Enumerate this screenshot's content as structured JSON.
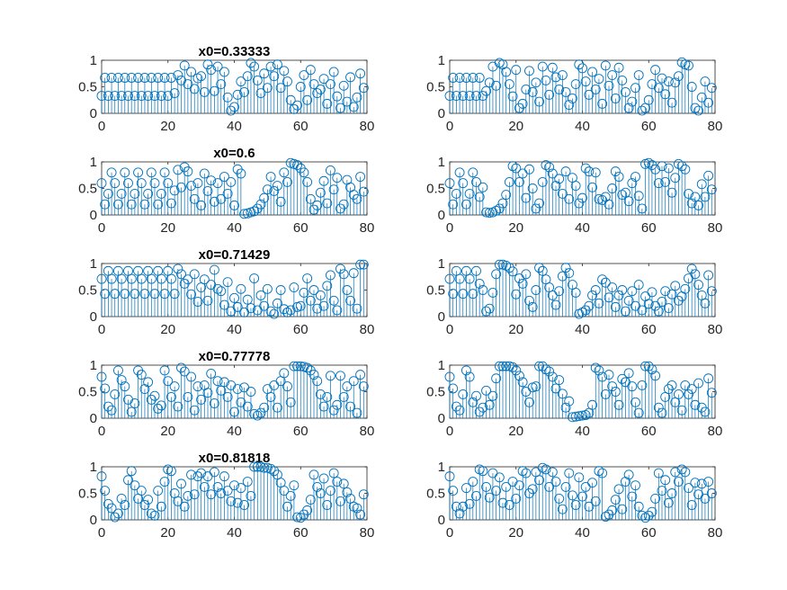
{
  "chart_data": [
    {
      "type": "stem",
      "title": "x0=0.33333",
      "xlim": [
        0,
        80
      ],
      "ylim": [
        0,
        1
      ],
      "xticks": [
        0,
        20,
        40,
        60,
        80
      ],
      "yticks": [
        0,
        0.5,
        1
      ],
      "x_start": 0,
      "values": [
        0.33,
        0.67,
        0.33,
        0.67,
        0.33,
        0.67,
        0.33,
        0.67,
        0.33,
        0.67,
        0.33,
        0.67,
        0.33,
        0.67,
        0.33,
        0.67,
        0.33,
        0.67,
        0.33,
        0.67,
        0.33,
        0.67,
        0.38,
        0.72,
        0.62,
        0.9,
        0.55,
        0.78,
        0.46,
        0.66,
        0.7,
        0.4,
        0.92,
        0.82,
        0.42,
        0.88,
        0.55,
        0.78,
        0.3,
        0.05,
        0.12,
        0.35,
        0.6,
        0.4,
        0.7,
        0.95,
        0.88,
        0.62,
        0.38,
        0.75,
        0.48,
        0.88,
        0.7,
        0.92,
        0.48,
        0.8,
        0.6,
        0.25,
        0.08,
        0.15,
        0.5,
        0.72,
        0.25,
        0.82,
        0.55,
        0.38,
        0.45,
        0.65,
        0.18,
        0.55,
        0.78,
        0.32,
        0.1,
        0.52,
        0.22,
        0.68,
        0.12,
        0.3,
        0.75,
        0.48
      ]
    },
    {
      "type": "stem",
      "title": "",
      "xlim": [
        0,
        80
      ],
      "ylim": [
        0,
        1
      ],
      "xticks": [
        0,
        20,
        40,
        60,
        80
      ],
      "yticks": [
        0,
        0.5,
        1
      ],
      "x_start": 0,
      "values": [
        0.33,
        0.67,
        0.33,
        0.67,
        0.33,
        0.67,
        0.33,
        0.67,
        0.33,
        0.67,
        0.33,
        0.42,
        0.58,
        0.88,
        0.52,
        0.95,
        0.92,
        0.78,
        0.55,
        0.32,
        0.82,
        0.1,
        0.18,
        0.45,
        0.8,
        0.4,
        0.58,
        0.22,
        0.88,
        0.62,
        0.35,
        0.86,
        0.68,
        0.45,
        0.72,
        0.4,
        0.16,
        0.28,
        0.55,
        0.92,
        0.85,
        0.6,
        0.35,
        0.78,
        0.45,
        0.65,
        0.18,
        0.9,
        0.52,
        0.72,
        0.28,
        0.86,
        0.62,
        0.4,
        0.1,
        0.22,
        0.48,
        0.72,
        0.05,
        0.1,
        0.25,
        0.55,
        0.82,
        0.48,
        0.66,
        0.36,
        0.6,
        0.2,
        0.58,
        0.7,
        0.96,
        0.92,
        0.9,
        0.5,
        0.1,
        0.05,
        0.3,
        0.6,
        0.2,
        0.48
      ]
    },
    {
      "type": "stem",
      "title": "x0=0.6",
      "xlim": [
        0,
        80
      ],
      "ylim": [
        0,
        1
      ],
      "xticks": [
        0,
        20,
        40,
        60,
        80
      ],
      "yticks": [
        0,
        0.5,
        1
      ],
      "x_start": 0,
      "values": [
        0.6,
        0.2,
        0.4,
        0.8,
        0.6,
        0.2,
        0.4,
        0.8,
        0.6,
        0.2,
        0.4,
        0.8,
        0.6,
        0.2,
        0.4,
        0.8,
        0.6,
        0.2,
        0.4,
        0.8,
        0.6,
        0.22,
        0.46,
        0.85,
        0.52,
        0.9,
        0.82,
        0.55,
        0.3,
        0.6,
        0.18,
        0.78,
        0.45,
        0.65,
        0.25,
        0.6,
        0.3,
        0.72,
        0.4,
        0.62,
        0.18,
        0.86,
        0.78,
        0.02,
        0.03,
        0.05,
        0.07,
        0.12,
        0.2,
        0.32,
        0.48,
        0.72,
        0.45,
        0.55,
        0.25,
        0.8,
        0.62,
        0.98,
        0.96,
        0.94,
        0.88,
        0.8,
        0.62,
        0.3,
        0.1,
        0.18,
        0.42,
        0.64,
        0.22,
        0.84,
        0.48,
        0.7,
        0.12,
        0.2,
        0.66,
        0.52,
        0.38,
        0.3,
        0.72,
        0.44
      ]
    },
    {
      "type": "stem",
      "title": "",
      "xlim": [
        0,
        80
      ],
      "ylim": [
        0,
        1
      ],
      "xticks": [
        0,
        20,
        40,
        60,
        80
      ],
      "yticks": [
        0,
        0.5,
        1
      ],
      "x_start": 0,
      "values": [
        0.6,
        0.2,
        0.4,
        0.8,
        0.6,
        0.2,
        0.4,
        0.8,
        0.62,
        0.34,
        0.52,
        0.05,
        0.04,
        0.05,
        0.08,
        0.12,
        0.22,
        0.38,
        0.62,
        0.92,
        0.88,
        0.62,
        0.78,
        0.32,
        0.86,
        0.5,
        0.12,
        0.22,
        0.62,
        0.94,
        0.9,
        0.78,
        0.55,
        0.68,
        0.4,
        0.82,
        0.3,
        0.7,
        0.55,
        0.22,
        0.32,
        0.88,
        0.82,
        0.52,
        0.8,
        0.3,
        0.28,
        0.34,
        0.2,
        0.5,
        0.82,
        0.72,
        0.38,
        0.42,
        0.26,
        0.6,
        0.72,
        0.36,
        0.12,
        0.96,
        0.98,
        0.94,
        0.86,
        0.6,
        0.92,
        0.62,
        0.88,
        0.42,
        0.7,
        0.96,
        0.92,
        0.86,
        0.4,
        0.22,
        0.34,
        0.18,
        0.58,
        0.34,
        0.74,
        0.48
      ]
    },
    {
      "type": "stem",
      "title": "x0=0.71429",
      "xlim": [
        0,
        80
      ],
      "ylim": [
        0,
        1
      ],
      "xticks": [
        0,
        20,
        40,
        60,
        80
      ],
      "yticks": [
        0,
        0.5,
        1
      ],
      "x_start": 0,
      "values": [
        0.71,
        0.43,
        0.86,
        0.71,
        0.43,
        0.86,
        0.71,
        0.43,
        0.86,
        0.71,
        0.43,
        0.86,
        0.71,
        0.43,
        0.86,
        0.71,
        0.43,
        0.86,
        0.71,
        0.43,
        0.86,
        0.71,
        0.43,
        0.9,
        0.8,
        0.62,
        0.7,
        0.42,
        0.8,
        0.28,
        0.55,
        0.7,
        0.3,
        0.6,
        0.88,
        0.52,
        0.48,
        0.22,
        0.65,
        0.1,
        0.35,
        0.18,
        0.52,
        0.08,
        0.32,
        0.16,
        0.72,
        0.12,
        0.4,
        0.2,
        0.52,
        0.1,
        0.05,
        0.25,
        0.5,
        0.14,
        0.08,
        0.12,
        0.55,
        0.18,
        0.2,
        0.45,
        0.72,
        0.3,
        0.5,
        0.15,
        0.4,
        0.2,
        0.58,
        0.78,
        0.3,
        0.12,
        0.9,
        0.8,
        0.5,
        0.3,
        0.82,
        0.15,
        0.98,
        0.98
      ]
    },
    {
      "type": "stem",
      "title": "",
      "xlim": [
        0,
        80
      ],
      "ylim": [
        0,
        1
      ],
      "xticks": [
        0,
        20,
        40,
        60,
        80
      ],
      "yticks": [
        0,
        0.5,
        1
      ],
      "x_start": 0,
      "values": [
        0.71,
        0.43,
        0.86,
        0.71,
        0.43,
        0.86,
        0.71,
        0.43,
        0.86,
        0.62,
        0.5,
        0.1,
        0.15,
        0.45,
        0.8,
        0.98,
        0.98,
        0.96,
        0.92,
        0.85,
        0.42,
        0.72,
        0.62,
        0.8,
        0.3,
        0.18,
        0.5,
        0.92,
        0.86,
        0.7,
        0.55,
        0.4,
        0.22,
        0.48,
        0.76,
        0.92,
        0.82,
        0.6,
        0.45,
        0.05,
        0.08,
        0.12,
        0.2,
        0.4,
        0.5,
        0.25,
        0.7,
        0.64,
        0.36,
        0.55,
        0.18,
        0.4,
        0.5,
        0.1,
        0.3,
        0.48,
        0.2,
        0.6,
        0.12,
        0.38,
        0.24,
        0.46,
        0.2,
        0.1,
        0.28,
        0.48,
        0.16,
        0.42,
        0.58,
        0.3,
        0.38,
        0.52,
        0.72,
        0.9,
        0.8,
        0.6,
        0.4,
        0.25,
        0.78,
        0.48
      ]
    },
    {
      "type": "stem",
      "title": "x0=0.77778",
      "xlim": [
        0,
        80
      ],
      "ylim": [
        0,
        1
      ],
      "xticks": [
        0,
        20,
        40,
        60,
        80
      ],
      "yticks": [
        0,
        0.5,
        1
      ],
      "x_start": 0,
      "values": [
        0.78,
        0.56,
        0.22,
        0.15,
        0.45,
        0.9,
        0.72,
        0.6,
        0.35,
        0.12,
        0.28,
        0.9,
        0.82,
        0.55,
        0.68,
        0.35,
        0.42,
        0.18,
        0.24,
        0.9,
        0.7,
        0.4,
        0.6,
        0.22,
        0.95,
        0.88,
        0.4,
        0.78,
        0.15,
        0.6,
        0.35,
        0.62,
        0.48,
        0.84,
        0.28,
        0.7,
        0.52,
        0.68,
        0.4,
        0.62,
        0.12,
        0.55,
        0.3,
        0.58,
        0.22,
        0.5,
        0.08,
        0.05,
        0.1,
        0.2,
        0.55,
        0.4,
        0.62,
        0.2,
        0.7,
        0.85,
        0.6,
        0.3,
        0.98,
        0.98,
        0.98,
        0.97,
        0.95,
        0.9,
        0.82,
        0.7,
        0.45,
        0.22,
        0.4,
        0.8,
        0.15,
        0.25,
        0.8,
        0.4,
        0.6,
        0.22,
        0.7,
        0.1,
        0.82,
        0.6
      ]
    },
    {
      "type": "stem",
      "title": "",
      "xlim": [
        0,
        80
      ],
      "ylim": [
        0,
        1
      ],
      "xticks": [
        0,
        20,
        40,
        60,
        80
      ],
      "yticks": [
        0,
        0.5,
        1
      ],
      "x_start": 0,
      "values": [
        0.78,
        0.56,
        0.22,
        0.15,
        0.45,
        0.9,
        0.78,
        0.3,
        0.42,
        0.12,
        0.2,
        0.52,
        0.25,
        0.42,
        0.75,
        0.98,
        0.98,
        0.98,
        0.98,
        0.96,
        0.9,
        0.8,
        0.68,
        0.5,
        0.3,
        0.58,
        0.6,
        0.98,
        0.98,
        0.92,
        0.88,
        0.78,
        0.56,
        0.72,
        0.46,
        0.2,
        0.32,
        0.02,
        0.03,
        0.04,
        0.05,
        0.06,
        0.1,
        0.25,
        0.95,
        0.9,
        0.78,
        0.45,
        0.82,
        0.6,
        0.5,
        0.25,
        0.74,
        0.68,
        0.85,
        0.6,
        0.3,
        0.1,
        0.62,
        0.98,
        0.98,
        0.92,
        0.8,
        0.2,
        0.1,
        0.4,
        0.55,
        0.62,
        0.3,
        0.45,
        0.15,
        0.62,
        0.45,
        0.55,
        0.25,
        0.66,
        0.2,
        0.12,
        0.75,
        0.48
      ]
    },
    {
      "type": "stem",
      "title": "x0=0.81818",
      "xlim": [
        0,
        80
      ],
      "ylim": [
        0,
        1
      ],
      "xticks": [
        0,
        20,
        40,
        60,
        80
      ],
      "yticks": [
        0,
        0.5,
        1
      ],
      "x_start": 0,
      "values": [
        0.82,
        0.55,
        0.3,
        0.22,
        0.05,
        0.12,
        0.4,
        0.28,
        0.75,
        0.92,
        0.65,
        0.4,
        0.55,
        0.28,
        0.38,
        0.12,
        0.08,
        0.55,
        0.25,
        0.72,
        0.95,
        0.92,
        0.5,
        0.35,
        0.68,
        0.25,
        0.45,
        0.85,
        0.48,
        0.82,
        0.88,
        0.62,
        0.82,
        0.48,
        0.9,
        0.62,
        0.5,
        0.82,
        0.55,
        0.35,
        0.65,
        0.32,
        0.6,
        0.28,
        0.72,
        0.45,
        1.0,
        1.0,
        1.0,
        0.98,
        0.98,
        0.96,
        0.92,
        0.85,
        0.7,
        0.55,
        0.25,
        0.45,
        0.65,
        0.05,
        0.04,
        0.1,
        0.18,
        0.38,
        0.85,
        0.62,
        0.5,
        0.78,
        0.28,
        0.55,
        0.88,
        0.72,
        0.35,
        0.68,
        0.52,
        0.4,
        0.25,
        0.22,
        0.1,
        0.48
      ]
    },
    {
      "type": "stem",
      "title": "",
      "xlim": [
        0,
        80
      ],
      "ylim": [
        0,
        1
      ],
      "xticks": [
        0,
        20,
        40,
        60,
        80
      ],
      "yticks": [
        0,
        0.5,
        1
      ],
      "x_start": 0,
      "values": [
        0.82,
        0.55,
        0.25,
        0.12,
        0.25,
        0.6,
        0.3,
        0.72,
        0.45,
        0.95,
        0.92,
        0.62,
        0.42,
        0.88,
        0.55,
        0.8,
        0.32,
        0.62,
        0.28,
        0.72,
        0.4,
        0.65,
        0.92,
        0.88,
        0.5,
        0.58,
        0.9,
        0.75,
        0.98,
        0.95,
        0.62,
        0.9,
        0.72,
        0.4,
        0.2,
        0.62,
        0.88,
        0.46,
        0.28,
        0.8,
        0.44,
        0.62,
        0.25,
        0.7,
        0.35,
        0.92,
        0.88,
        0.06,
        0.1,
        0.18,
        0.38,
        0.58,
        0.2,
        0.72,
        0.85,
        0.44,
        0.65,
        0.25,
        0.08,
        0.04,
        0.08,
        0.15,
        0.4,
        0.88,
        0.55,
        0.75,
        0.32,
        0.5,
        0.9,
        0.72,
        0.95,
        0.9,
        0.6,
        0.28,
        0.7,
        0.48,
        0.68,
        0.4,
        0.72,
        0.5
      ]
    }
  ]
}
